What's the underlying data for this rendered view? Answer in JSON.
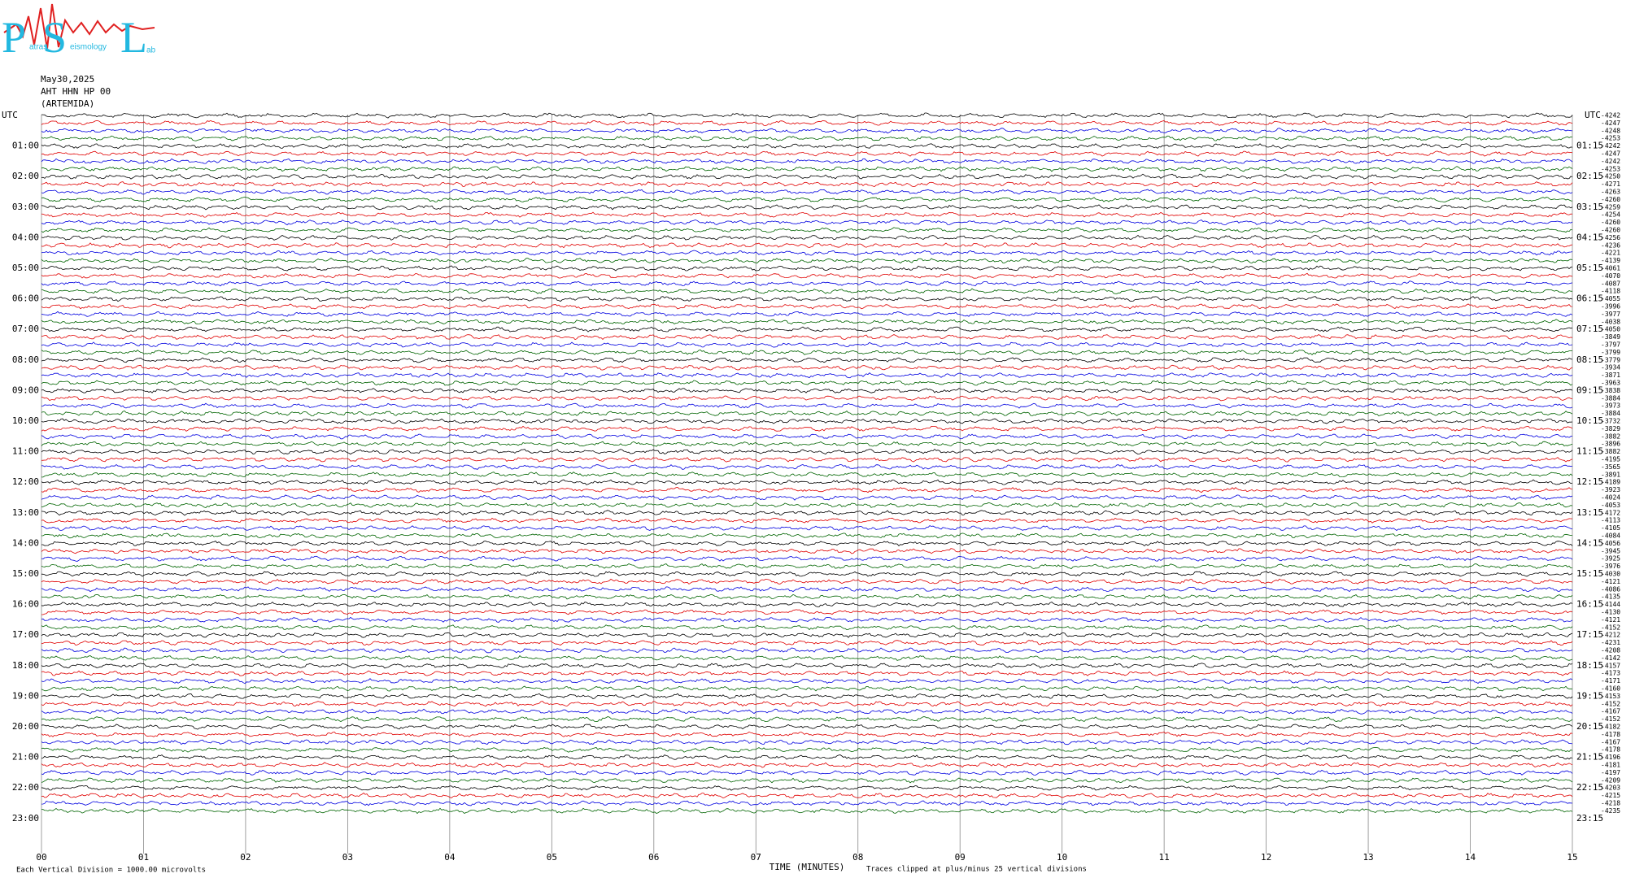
{
  "logo": {
    "letters": [
      "P",
      "S",
      "L"
    ],
    "small": [
      "atras",
      "eismology",
      "ab"
    ]
  },
  "header": {
    "date": "May30,2025",
    "station": "AHT HHN HP 00",
    "site": "(ARTEMIDA)"
  },
  "left_labels": {
    "top": "UTC",
    "hours": [
      "01:00",
      "02:00",
      "03:00",
      "04:00",
      "05:00",
      "06:00",
      "07:00",
      "08:00",
      "09:00",
      "10:00",
      "11:00",
      "12:00",
      "13:00",
      "14:00",
      "15:00",
      "16:00",
      "17:00",
      "18:00",
      "19:00",
      "20:00",
      "21:00",
      "22:00",
      "23:00"
    ]
  },
  "right_labels": {
    "top": "UTC",
    "hours": [
      "01:15",
      "02:15",
      "03:15",
      "04:15",
      "05:15",
      "06:15",
      "07:15",
      "08:15",
      "09:15",
      "10:15",
      "11:15",
      "12:15",
      "13:15",
      "14:15",
      "15:15",
      "16:15",
      "17:15",
      "18:15",
      "19:15",
      "20:15",
      "21:15",
      "22:15",
      "23:15"
    ]
  },
  "trace_offsets": [
    "-4242",
    "-4247",
    "-4248",
    "-4253",
    "-4242",
    "-4247",
    "-4242",
    "-4253",
    "-4250",
    "-4271",
    "-4263",
    "-4260",
    "-4259",
    "-4254",
    "-4260",
    "-4260",
    "-4256",
    "-4236",
    "-4221",
    "-4139",
    "-4061",
    "-4070",
    "-4087",
    "-4118",
    "-4055",
    "-3996",
    "-3977",
    "-4038",
    "-4050",
    "-3849",
    "-3797",
    "-3799",
    "-3779",
    "-3934",
    "-3871",
    "-3963",
    "-3838",
    "-3884",
    "-3973",
    "-3884",
    "-3732",
    "-3829",
    "-3882",
    "-3896",
    "-3882",
    "-4195",
    "-3565",
    "-3891",
    "-4189",
    "-3923",
    "-4024",
    "-4053",
    "-4172",
    "-4113",
    "-4105",
    "-4084",
    "-4056",
    "-3945",
    "-3925",
    "-3976",
    "-4030",
    "-4121",
    "-4086",
    "-4135",
    "-4144",
    "-4130",
    "-4121",
    "-4152",
    "-4212",
    "-4231",
    "-4208",
    "-4142",
    "-4157",
    "-4173",
    "-4171",
    "-4160",
    "-4153",
    "-4152",
    "-4167",
    "-4152",
    "-4182",
    "-4178",
    "-4167",
    "-4178",
    "-4196",
    "-4181",
    "-4197",
    "-4209",
    "-4203",
    "-4215",
    "-4218",
    "-4235"
  ],
  "x_axis": {
    "ticks": [
      "00",
      "01",
      "02",
      "03",
      "04",
      "05",
      "06",
      "07",
      "08",
      "09",
      "10",
      "11",
      "12",
      "13",
      "14",
      "15"
    ],
    "title": "TIME (MINUTES)"
  },
  "footer": {
    "scale": "Each Vertical Division = 1000.00 microvolts",
    "clip": "Traces clipped at plus/minus 25 vertical divisions"
  }
}
